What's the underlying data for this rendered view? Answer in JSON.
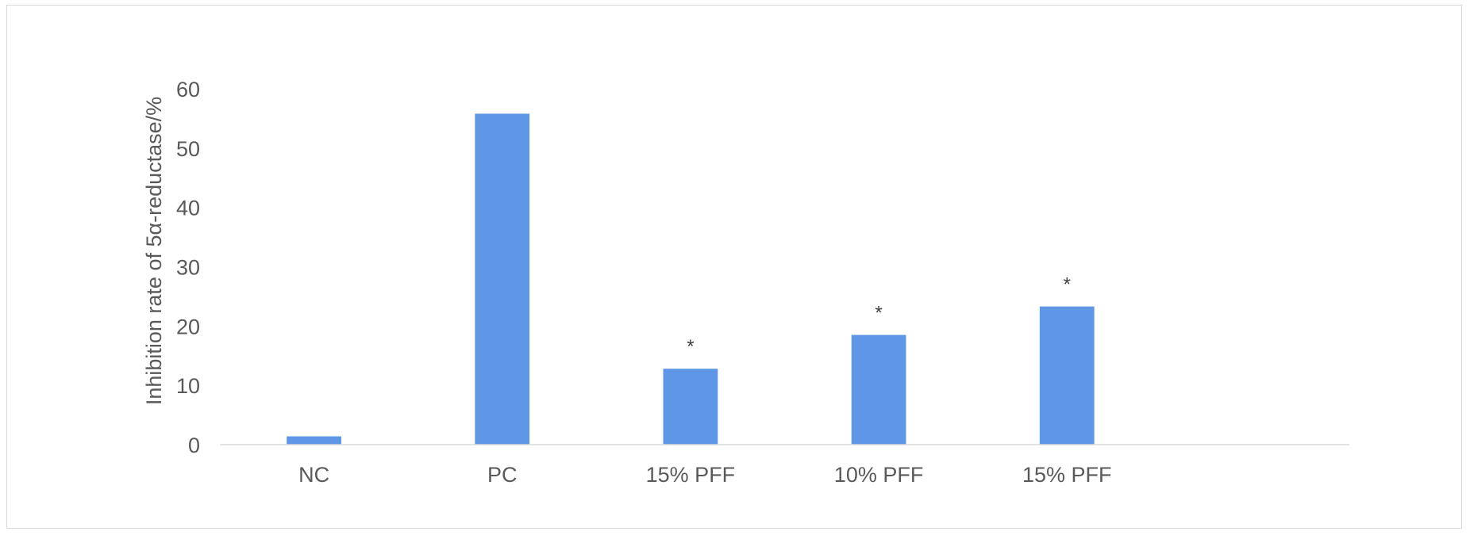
{
  "chart_data": {
    "type": "bar",
    "categories": [
      "NC",
      "PC",
      "15% PFF",
      "10% PFF",
      "15% PFF"
    ],
    "values": [
      1.4,
      55.8,
      12.8,
      18.5,
      23.3
    ],
    "annotations": [
      "",
      "",
      "*",
      "*",
      "*"
    ],
    "title": "",
    "xlabel": "",
    "ylabel": "Inhibition rate of 5α-reductase/%",
    "ylim": [
      0,
      60
    ],
    "yticks": [
      0,
      10,
      20,
      30,
      40,
      50,
      60
    ],
    "extra_empty_slots": 1,
    "grid": false,
    "legend": "none",
    "bar_color": "#5f97e6"
  }
}
